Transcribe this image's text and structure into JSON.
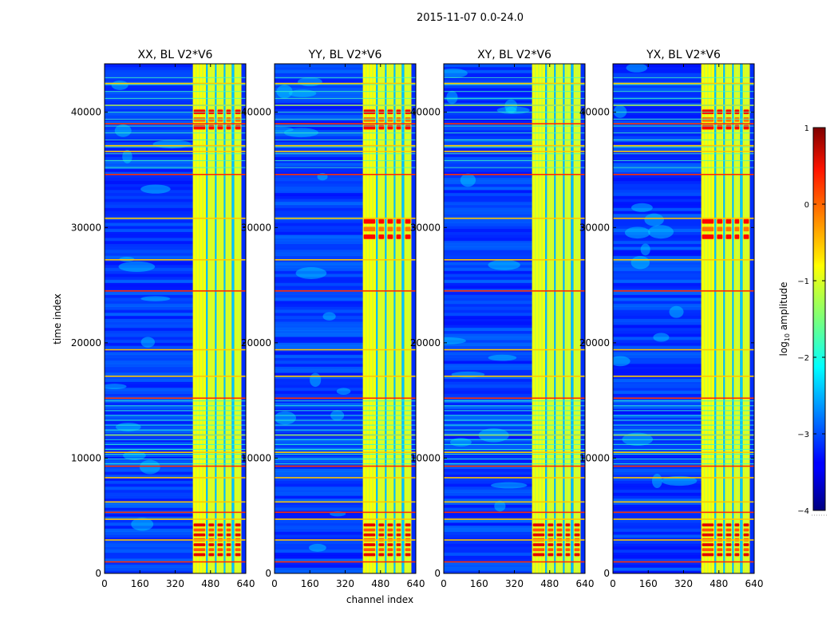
{
  "chart_data": {
    "type": "heatmap",
    "suptitle": "2015-11-07 0.0-24.0",
    "xlabel": "channel index",
    "ylabel": "time index",
    "xlim": [
      0,
      640
    ],
    "ylim": [
      0,
      44200
    ],
    "xticks": [
      0,
      160,
      320,
      480,
      640
    ],
    "yticks": [
      0,
      10000,
      20000,
      30000,
      40000
    ],
    "panels": [
      {
        "title": "XX, BL V2*V6",
        "variant": 0
      },
      {
        "title": "YY, BL V2*V6",
        "variant": 1
      },
      {
        "title": "XY, BL V2*V6",
        "variant": 2
      },
      {
        "title": "YX, BL V2*V6",
        "variant": 3
      }
    ],
    "colorbar": {
      "label": "log10 amplitude",
      "label_base": "log",
      "label_sub": "10",
      "label_rest": " amplitude",
      "range": [
        -4,
        1
      ],
      "ticks": [
        {
          "value": 1,
          "label": "1"
        },
        {
          "value": 0,
          "label": "0"
        },
        {
          "value": -1,
          "label": "−1"
        },
        {
          "value": -2,
          "label": "−2"
        },
        {
          "value": -3,
          "label": "−3"
        },
        {
          "value": -4,
          "label": "−4"
        }
      ]
    },
    "band_channels": [
      [
        400,
        460
      ],
      [
        460,
        468
      ],
      [
        468,
        500
      ],
      [
        500,
        508
      ],
      [
        508,
        540
      ],
      [
        540,
        548
      ],
      [
        548,
        576
      ],
      [
        576,
        588
      ],
      [
        588,
        620
      ]
    ],
    "rfi_rows_time_index": [
      1000,
      2900,
      4700,
      5300,
      6200,
      8300,
      9300,
      10500,
      12000,
      15200,
      17100,
      19400,
      24500,
      27200,
      30800,
      34600,
      36600,
      37100,
      39000,
      40600,
      42500
    ],
    "hot_blocks_time_index": [
      [
        1500,
        4500
      ],
      [
        29000,
        31000
      ],
      [
        38500,
        40500
      ]
    ]
  }
}
